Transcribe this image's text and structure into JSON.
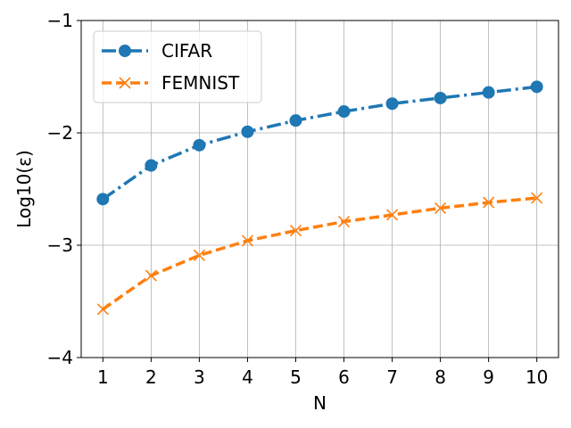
{
  "chart_data": {
    "type": "line",
    "xlabel": "N",
    "ylabel": "Log10(ε)",
    "x": [
      1,
      2,
      3,
      4,
      5,
      6,
      7,
      8,
      9,
      10
    ],
    "xticks": [
      "1",
      "2",
      "3",
      "4",
      "5",
      "6",
      "7",
      "8",
      "9",
      "10"
    ],
    "xlim": [
      0.55,
      10.45
    ],
    "ylim": [
      -4,
      -1
    ],
    "yticks": [
      -4,
      -3,
      -2,
      -1
    ],
    "ytick_labels": [
      "−4",
      "−3",
      "−2",
      "−1"
    ],
    "grid": true,
    "legend": "top-left",
    "series": [
      {
        "name": "CIFAR",
        "color": "#1f77b4",
        "marker": "circle",
        "linestyle": "dashdot",
        "values": [
          -2.59,
          -2.29,
          -2.11,
          -1.99,
          -1.89,
          -1.81,
          -1.74,
          -1.69,
          -1.64,
          -1.59
        ]
      },
      {
        "name": "FEMNIST",
        "color": "#ff7f0e",
        "marker": "x",
        "linestyle": "dashed",
        "values": [
          -3.57,
          -3.27,
          -3.09,
          -2.96,
          -2.87,
          -2.79,
          -2.73,
          -2.67,
          -2.62,
          -2.58
        ]
      }
    ]
  }
}
